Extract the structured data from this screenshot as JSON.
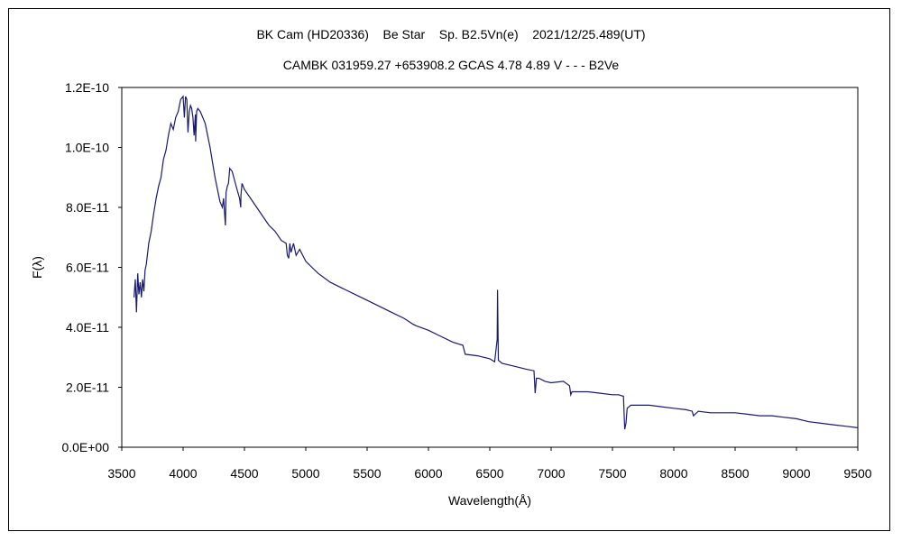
{
  "chart_data": {
    "type": "line",
    "title": "BK Cam (HD20336)    Be Star    Sp. B2.5Vn(e)    2021/12/25.489(UT)",
    "subtitle": "CAMBK 031959.27 +653908.2 GCAS 4.78 4.89 V - - - B2Ve",
    "xlabel": "Wavelength(Å)",
    "ylabel": "F(λ)",
    "xlim": [
      3500,
      9500
    ],
    "ylim": [
      0,
      1.2e-10
    ],
    "x_ticks": [
      "3500",
      "4000",
      "4500",
      "5000",
      "5500",
      "6000",
      "6500",
      "7000",
      "7500",
      "8000",
      "8500",
      "9000",
      "9500"
    ],
    "y_ticks": [
      "0.0E+00",
      "2.0E-11",
      "4.0E-11",
      "6.0E-11",
      "8.0E-11",
      "1.0E-10",
      "1.2E-10"
    ],
    "grid": false,
    "line_color": "#1a1a6e",
    "series": [
      {
        "x": [
          3600,
          3610,
          3620,
          3630,
          3640,
          3650,
          3660,
          3670,
          3680,
          3690,
          3700,
          3720,
          3740,
          3760,
          3780,
          3800,
          3820,
          3840,
          3860,
          3880,
          3900,
          3920,
          3940,
          3960,
          3980,
          4000,
          4010,
          4020,
          4030,
          4040,
          4050,
          4060,
          4070,
          4080,
          4090,
          4100,
          4102,
          4110,
          4120,
          4140,
          4160,
          4180,
          4200,
          4220,
          4240,
          4260,
          4280,
          4300,
          4320,
          4330,
          4340,
          4345,
          4350,
          4360,
          4370,
          4380,
          4400,
          4420,
          4440,
          4460,
          4470,
          4471,
          4480,
          4500,
          4550,
          4600,
          4650,
          4700,
          4750,
          4800,
          4840,
          4850,
          4861,
          4870,
          4880,
          4900,
          4921,
          4950,
          5000,
          5050,
          5100,
          5200,
          5300,
          5400,
          5500,
          5600,
          5700,
          5800,
          5876,
          5900,
          6000,
          6100,
          6200,
          6280,
          6300,
          6400,
          6500,
          6540,
          6560,
          6563,
          6570,
          6600,
          6700,
          6800,
          6860,
          6870,
          6880,
          6900,
          6950,
          7000,
          7100,
          7150,
          7160,
          7170,
          7200,
          7300,
          7400,
          7500,
          7550,
          7590,
          7600,
          7610,
          7620,
          7650,
          7700,
          7800,
          7900,
          8000,
          8100,
          8150,
          8160,
          8200,
          8300,
          8400,
          8500,
          8600,
          8700,
          8800,
          8900,
          9000,
          9100,
          9200,
          9300,
          9400,
          9500
        ],
        "y": [
          5e-11,
          5.6e-11,
          4.5e-11,
          5.8e-11,
          5.1e-11,
          5.5e-11,
          5e-11,
          5.6e-11,
          5.2e-11,
          5.9e-11,
          6.1e-11,
          6.8e-11,
          7.2e-11,
          7.8e-11,
          8.3e-11,
          8.7e-11,
          9e-11,
          9.6e-11,
          9.9e-11,
          1.04e-10,
          1.08e-10,
          1.06e-10,
          1.1e-10,
          1.12e-10,
          1.16e-10,
          1.17e-10,
          1.1e-10,
          1.17e-10,
          1.16e-10,
          1.05e-10,
          1.12e-10,
          1.14e-10,
          1.13e-10,
          1.1e-10,
          1.04e-10,
          1.11e-10,
          1.02e-10,
          1.12e-10,
          1.13e-10,
          1.12e-10,
          1.1e-10,
          1.08e-10,
          1.04e-10,
          1e-10,
          9.5e-11,
          9e-11,
          8.6e-11,
          8.2e-11,
          8e-11,
          8.3e-11,
          7.7e-11,
          7.4e-11,
          8.5e-11,
          8.7e-11,
          8.8e-11,
          9.3e-11,
          9.2e-11,
          8.9e-11,
          8.6e-11,
          8.3e-11,
          8e-11,
          8.4e-11,
          8.8e-11,
          8.6e-11,
          8.3e-11,
          8e-11,
          7.7e-11,
          7.4e-11,
          7.2e-11,
          6.9e-11,
          6.8e-11,
          6.4e-11,
          6.3e-11,
          6.8e-11,
          6.5e-11,
          6.8e-11,
          6.4e-11,
          6.6e-11,
          6.2e-11,
          6e-11,
          5.8e-11,
          5.5e-11,
          5.3e-11,
          5.1e-11,
          4.9e-11,
          4.7e-11,
          4.5e-11,
          4.3e-11,
          4.1e-11,
          4.05e-11,
          3.9e-11,
          3.7e-11,
          3.5e-11,
          3.4e-11,
          3.1e-11,
          3.05e-11,
          2.95e-11,
          2.85e-11,
          3.6e-11,
          5.25e-11,
          2.9e-11,
          2.8e-11,
          2.7e-11,
          2.6e-11,
          2.55e-11,
          1.8e-11,
          2.3e-11,
          2.3e-11,
          2.2e-11,
          2.15e-11,
          2.2e-11,
          2.05e-11,
          1.75e-11,
          1.85e-11,
          1.85e-11,
          1.85e-11,
          1.8e-11,
          1.75e-11,
          1.75e-11,
          1.7e-11,
          6e-12,
          8e-12,
          1.3e-11,
          1.4e-11,
          1.4e-11,
          1.4e-11,
          1.35e-11,
          1.3e-11,
          1.25e-11,
          1.2e-11,
          1.05e-11,
          1.2e-11,
          1.15e-11,
          1.15e-11,
          1.15e-11,
          1.1e-11,
          1.05e-11,
          1.05e-11,
          1e-11,
          9.5e-12,
          8.5e-12,
          8e-12,
          7.5e-12,
          7e-12,
          6.5e-12
        ]
      }
    ]
  }
}
